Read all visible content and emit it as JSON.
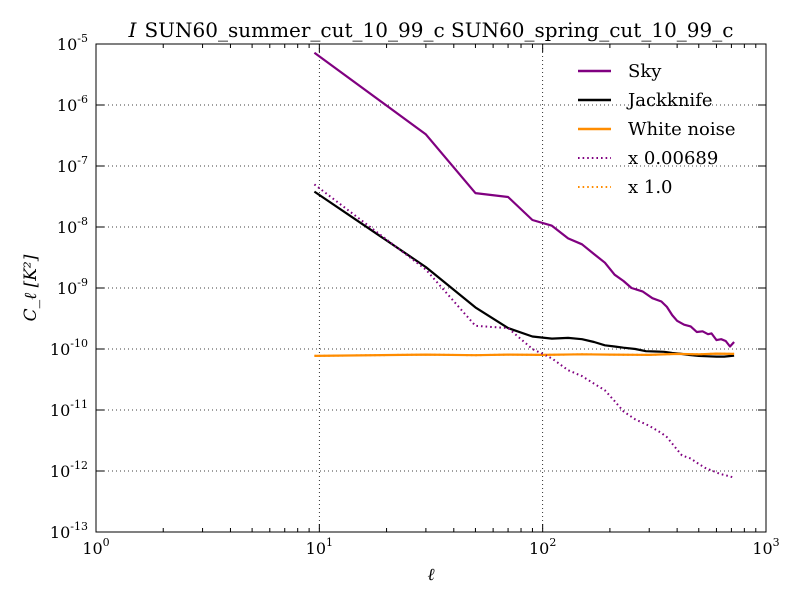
{
  "chart_data": {
    "type": "line",
    "title_italic": "I",
    "title": "SUN60_summer_cut_10_99_c SUN60_spring_cut_10_99_c",
    "xlabel": "ℓ",
    "ylabel": "C_ℓ [K²]",
    "xscale": "log",
    "yscale": "log",
    "xlim": [
      1,
      1000
    ],
    "ylim": [
      1e-13,
      1e-05
    ],
    "x_ticks": [
      {
        "base": "10",
        "exp": "0",
        "value": 1
      },
      {
        "base": "10",
        "exp": "1",
        "value": 10
      },
      {
        "base": "10",
        "exp": "2",
        "value": 100
      },
      {
        "base": "10",
        "exp": "3",
        "value": 1000
      }
    ],
    "y_ticks": [
      {
        "base": "10",
        "exp": "-13",
        "value": 1e-13
      },
      {
        "base": "10",
        "exp": "-12",
        "value": 1e-12
      },
      {
        "base": "10",
        "exp": "-11",
        "value": 1e-11
      },
      {
        "base": "10",
        "exp": "-10",
        "value": 1e-10
      },
      {
        "base": "10",
        "exp": "-9",
        "value": 1e-09
      },
      {
        "base": "10",
        "exp": "-8",
        "value": 1e-08
      },
      {
        "base": "10",
        "exp": "-7",
        "value": 1e-07
      },
      {
        "base": "10",
        "exp": "-6",
        "value": 1e-06
      },
      {
        "base": "10",
        "exp": "-5",
        "value": 1e-05
      }
    ],
    "grid": true,
    "legend_position": "top-right",
    "series": [
      {
        "name": "Sky",
        "color": "#800080",
        "style": "solid",
        "points": [
          [
            9.5,
            7.2e-06
          ],
          [
            30,
            3.3e-07
          ],
          [
            50,
            3.6e-08
          ],
          [
            70,
            3.1e-08
          ],
          [
            90,
            1.3e-08
          ],
          [
            110,
            1.05e-08
          ],
          [
            130,
            6.5e-09
          ],
          [
            150,
            5.2e-09
          ],
          [
            170,
            3.6e-09
          ],
          [
            190,
            2.6e-09
          ],
          [
            210,
            1.65e-09
          ],
          [
            230,
            1.3e-09
          ],
          [
            250,
            1e-09
          ],
          [
            280,
            8.8e-10
          ],
          [
            310,
            6.8e-10
          ],
          [
            340,
            6e-10
          ],
          [
            360,
            4.9e-10
          ],
          [
            380,
            3.6e-10
          ],
          [
            400,
            2.9e-10
          ],
          [
            430,
            2.5e-10
          ],
          [
            460,
            2.35e-10
          ],
          [
            490,
            1.9e-10
          ],
          [
            520,
            1.95e-10
          ],
          [
            550,
            1.75e-10
          ],
          [
            570,
            1.8e-10
          ],
          [
            600,
            1.4e-10
          ],
          [
            630,
            1.45e-10
          ],
          [
            660,
            1.35e-10
          ],
          [
            690,
            1.1e-10
          ],
          [
            720,
            1.3e-10
          ]
        ]
      },
      {
        "name": "Jackknife",
        "color": "#000000",
        "style": "solid",
        "points": [
          [
            9.5,
            3.8e-08
          ],
          [
            30,
            2.2e-09
          ],
          [
            50,
            4.8e-10
          ],
          [
            70,
            2.2e-10
          ],
          [
            90,
            1.6e-10
          ],
          [
            110,
            1.48e-10
          ],
          [
            130,
            1.52e-10
          ],
          [
            150,
            1.45e-10
          ],
          [
            170,
            1.3e-10
          ],
          [
            190,
            1.15e-10
          ],
          [
            210,
            1.1e-10
          ],
          [
            230,
            1.05e-10
          ],
          [
            260,
            1e-10
          ],
          [
            290,
            9.2e-11
          ],
          [
            320,
            9.1e-11
          ],
          [
            350,
            9e-11
          ],
          [
            380,
            8.6e-11
          ],
          [
            410,
            8.4e-11
          ],
          [
            450,
            8e-11
          ],
          [
            500,
            7.7e-11
          ],
          [
            550,
            7.6e-11
          ],
          [
            600,
            7.5e-11
          ],
          [
            650,
            7.5e-11
          ],
          [
            720,
            7.8e-11
          ]
        ]
      },
      {
        "name": "White noise",
        "color": "#ff8c00",
        "style": "solid",
        "points": [
          [
            9.5,
            7.7e-11
          ],
          [
            30,
            8.1e-11
          ],
          [
            50,
            7.9e-11
          ],
          [
            70,
            8.1e-11
          ],
          [
            100,
            8e-11
          ],
          [
            150,
            8.2e-11
          ],
          [
            200,
            8.1e-11
          ],
          [
            300,
            8e-11
          ],
          [
            400,
            8.3e-11
          ],
          [
            500,
            8.2e-11
          ],
          [
            600,
            8.4e-11
          ],
          [
            720,
            8.3e-11
          ]
        ]
      },
      {
        "name": "x 0.00689",
        "color": "#800080",
        "style": "dotted",
        "points": [
          [
            9.5,
            5e-08
          ],
          [
            30,
            2e-09
          ],
          [
            50,
            2.4e-10
          ],
          [
            70,
            2.2e-10
          ],
          [
            90,
            1e-10
          ],
          [
            110,
            7e-11
          ],
          [
            130,
            4.5e-11
          ],
          [
            150,
            3.6e-11
          ],
          [
            170,
            2.7e-11
          ],
          [
            190,
            2.1e-11
          ],
          [
            210,
            1.4e-11
          ],
          [
            230,
            9.5e-12
          ],
          [
            260,
            7e-12
          ],
          [
            300,
            5.5e-12
          ],
          [
            340,
            4.2e-12
          ],
          [
            360,
            3.6e-12
          ],
          [
            390,
            2.5e-12
          ],
          [
            420,
            1.8e-12
          ],
          [
            460,
            1.6e-12
          ],
          [
            500,
            1.3e-12
          ],
          [
            540,
            1.1e-12
          ],
          [
            580,
            1e-12
          ],
          [
            620,
            9e-13
          ],
          [
            660,
            8.5e-13
          ],
          [
            720,
            7.8e-13
          ]
        ]
      },
      {
        "name": "x 1.0",
        "color": "#ff8c00",
        "style": "dotted",
        "points": [
          [
            9.5,
            7.7e-11
          ],
          [
            30,
            8.1e-11
          ],
          [
            50,
            7.9e-11
          ],
          [
            70,
            8.1e-11
          ],
          [
            100,
            8e-11
          ],
          [
            150,
            8.2e-11
          ],
          [
            200,
            8.1e-11
          ],
          [
            300,
            8e-11
          ],
          [
            400,
            8.3e-11
          ],
          [
            500,
            8.2e-11
          ],
          [
            600,
            8.4e-11
          ],
          [
            720,
            8.3e-11
          ]
        ]
      }
    ]
  }
}
